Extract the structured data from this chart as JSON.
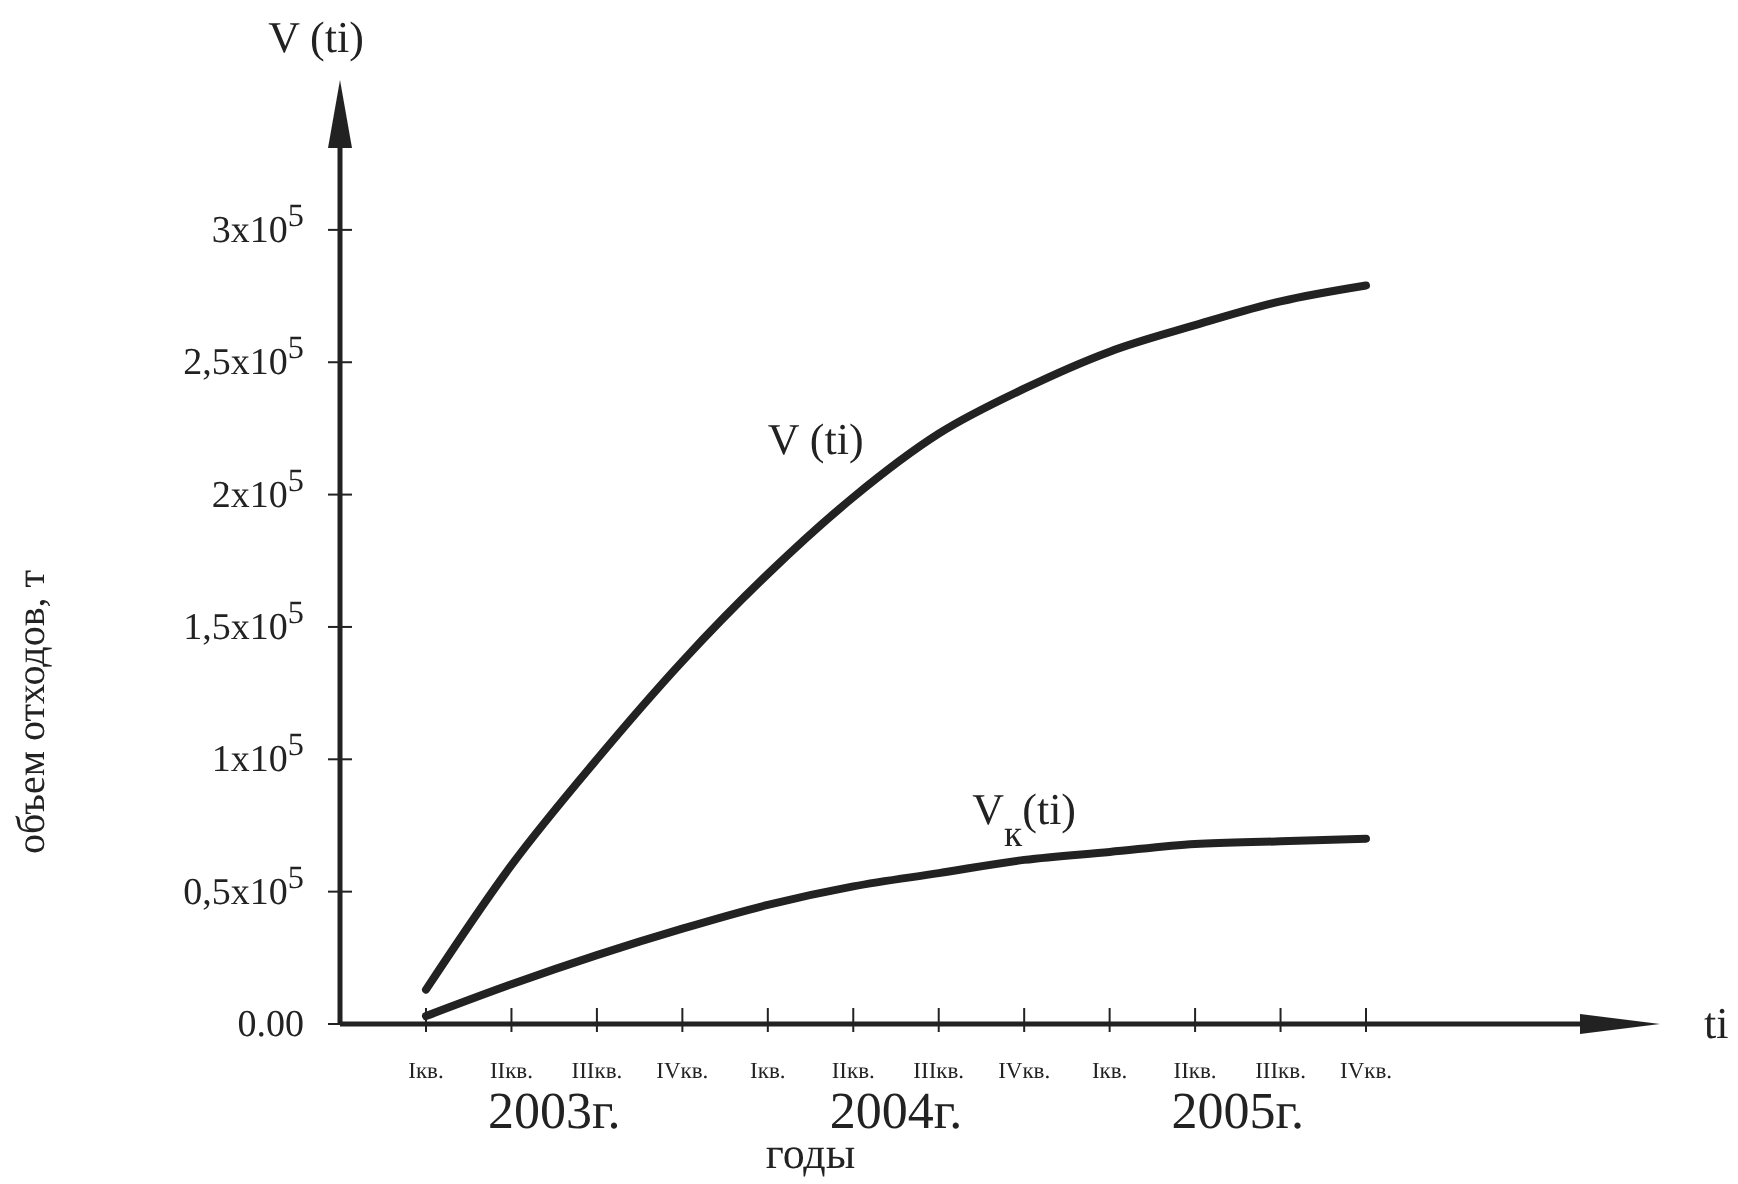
{
  "chart_data": {
    "type": "line",
    "xlabel": "годы",
    "ylabel": "объем отходов, т",
    "categories": [
      "Iкв.",
      "IIкв.",
      "IIIкв.",
      "IVкв.",
      "Iкв.",
      "IIкв.",
      "IIIкв.",
      "IVкв.",
      "Iкв.",
      "IIкв.",
      "IIIкв.",
      "IVкв."
    ],
    "series": [
      {
        "name": "V (ti)",
        "color": "#222222",
        "values": [
          13000,
          60000,
          100000,
          137000,
          170000,
          199000,
          223000,
          240000,
          254000,
          264000,
          273000,
          279000
        ]
      },
      {
        "name": "V$_{к}$(ti)",
        "color": "#222222",
        "values": [
          3000,
          15000,
          26000,
          36000,
          45000,
          52000,
          57000,
          62000,
          65000,
          68000,
          69000,
          70000
        ]
      }
    ],
    "ylim": [
      0,
      340000
    ],
    "yticks": [
      {
        "value": 0,
        "label": "0.00"
      },
      {
        "value": 50000,
        "label": "0,5x10$^{5}$"
      },
      {
        "value": 100000,
        "label": "1x10$^{5}$"
      },
      {
        "value": 150000,
        "label": "1,5x10$^{5}$"
      },
      {
        "value": 200000,
        "label": "2x10$^{5}$"
      },
      {
        "value": 250000,
        "label": "2,5x10$^{5}$"
      },
      {
        "value": 300000,
        "label": "3x10$^{5}$"
      }
    ],
    "annotations": [
      "2003г.",
      "2004г.",
      "2005г.",
      "V (ti)",
      "ti"
    ],
    "grid": false,
    "legend": false,
    "marker": "none",
    "line_style": "solid"
  }
}
